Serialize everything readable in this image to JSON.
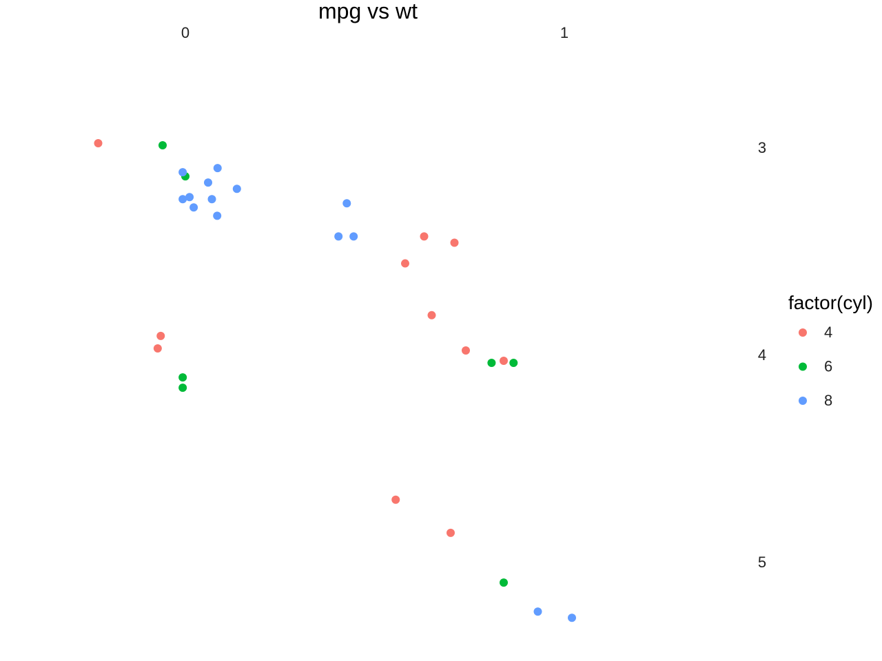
{
  "chart_data": {
    "type": "scatter",
    "title": "mpg vs wt",
    "xlabel": "",
    "ylabel": "",
    "x_ticks": [
      "0",
      "1"
    ],
    "y_ticks": [
      "3",
      "4",
      "5"
    ],
    "x_axis_position": "top",
    "y_axis_position": "right",
    "y_reversed": true,
    "grid": false,
    "legend": {
      "title": "factor(cyl)",
      "placement": "right"
    },
    "series": [
      {
        "name": "4",
        "color": "#F8766D",
        "points": [
          {
            "x": -0.23,
            "y": 2.98
          },
          {
            "x": -0.065,
            "y": 3.91
          },
          {
            "x": -0.073,
            "y": 3.97
          },
          {
            "x": 0.58,
            "y": 3.56
          },
          {
            "x": 0.63,
            "y": 3.43
          },
          {
            "x": 0.71,
            "y": 3.46
          },
          {
            "x": 0.65,
            "y": 3.81
          },
          {
            "x": 0.74,
            "y": 3.98
          },
          {
            "x": 0.84,
            "y": 4.03
          },
          {
            "x": 0.555,
            "y": 4.7
          },
          {
            "x": 0.7,
            "y": 4.86
          }
        ]
      },
      {
        "name": "6",
        "color": "#00BA38",
        "points": [
          {
            "x": -0.06,
            "y": 2.99
          },
          {
            "x": 0.0,
            "y": 3.14
          },
          {
            "x": -0.007,
            "y": 4.11
          },
          {
            "x": -0.007,
            "y": 4.16
          },
          {
            "x": 0.808,
            "y": 4.04
          },
          {
            "x": 0.866,
            "y": 4.04
          },
          {
            "x": 0.84,
            "y": 5.1
          }
        ]
      },
      {
        "name": "8",
        "color": "#619CFF",
        "points": [
          {
            "x": -0.007,
            "y": 3.12
          },
          {
            "x": 0.085,
            "y": 3.1
          },
          {
            "x": 0.06,
            "y": 3.17
          },
          {
            "x": 0.136,
            "y": 3.2
          },
          {
            "x": 0.011,
            "y": 3.24
          },
          {
            "x": -0.007,
            "y": 3.25
          },
          {
            "x": 0.07,
            "y": 3.25
          },
          {
            "x": 0.022,
            "y": 3.29
          },
          {
            "x": 0.084,
            "y": 3.33
          },
          {
            "x": 0.426,
            "y": 3.27
          },
          {
            "x": 0.404,
            "y": 3.43
          },
          {
            "x": 0.444,
            "y": 3.43
          },
          {
            "x": 0.93,
            "y": 5.24
          },
          {
            "x": 1.02,
            "y": 5.27
          }
        ]
      }
    ]
  }
}
